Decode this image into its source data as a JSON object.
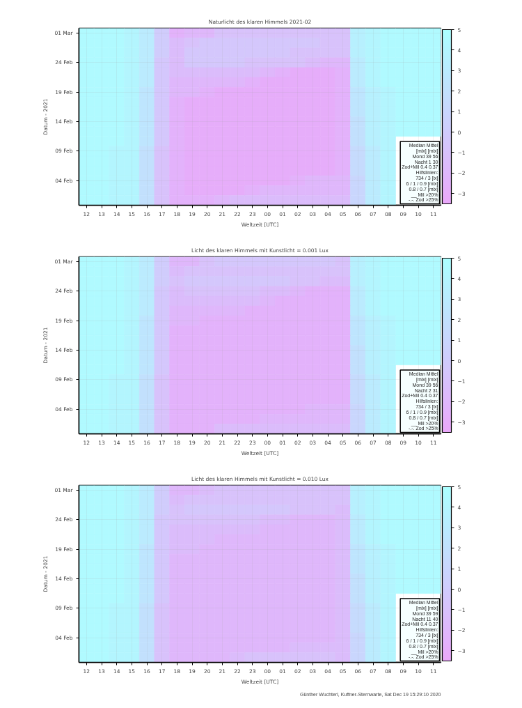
{
  "chart_data": [
    {
      "type": "heatmap",
      "title": "Naturlicht des klaren Himmels 2021-02",
      "xlabel": "Weltzeit [UTC]",
      "ylabel": "Datum - 2021",
      "categories": [
        "12",
        "13",
        "14",
        "15",
        "16",
        "17",
        "18",
        "19",
        "20",
        "21",
        "22",
        "23",
        "00",
        "01",
        "02",
        "03",
        "04",
        "05",
        "06",
        "07",
        "08",
        "09",
        "10",
        "11"
      ],
      "y_categories": [
        "01 Mar",
        null,
        null,
        "24 Feb",
        null,
        null,
        "19 Feb",
        null,
        null,
        "14 Feb",
        null,
        null,
        "09 Feb",
        null,
        null,
        "04 Feb",
        null,
        null
      ],
      "cells": [
        [
          4.5,
          4.5,
          4.5,
          4.0,
          3.0,
          0.0,
          -2.5,
          -2.0,
          -2.0,
          -1.0,
          -1.0,
          -1.0,
          -1.0,
          -1.0,
          -1.0,
          -1.0,
          -1.0,
          -1.0,
          3.5,
          4.0,
          4.5,
          4.5,
          4.5,
          4.5
        ],
        [
          4.5,
          4.5,
          4.5,
          4.0,
          3.0,
          0.0,
          -1.5,
          -1.0,
          -0.5,
          -0.5,
          -0.5,
          -0.5,
          -0.5,
          -0.5,
          -0.5,
          -0.5,
          -1.0,
          -1.0,
          3.5,
          4.0,
          4.5,
          4.5,
          4.5,
          4.5
        ],
        [
          4.5,
          4.5,
          4.5,
          4.0,
          3.0,
          0.0,
          -1.5,
          -0.5,
          -0.5,
          -0.5,
          -0.5,
          -0.5,
          -0.5,
          -0.5,
          -1.0,
          -1.0,
          -1.0,
          -1.0,
          3.5,
          4.0,
          4.5,
          4.5,
          4.5,
          4.5
        ],
        [
          4.5,
          4.5,
          4.5,
          4.0,
          3.0,
          -0.5,
          -1.5,
          -0.5,
          -0.5,
          -0.5,
          -0.5,
          -1.0,
          -1.0,
          -1.0,
          -1.0,
          -1.5,
          -2.0,
          -2.0,
          3.0,
          4.0,
          4.5,
          4.5,
          4.5,
          4.5
        ],
        [
          4.5,
          4.5,
          4.5,
          4.0,
          3.0,
          -0.5,
          -1.5,
          -1.5,
          -1.5,
          -1.5,
          -1.5,
          -1.5,
          -2.0,
          -2.5,
          -3.0,
          -3.0,
          -3.0,
          -2.5,
          3.0,
          4.0,
          4.5,
          4.5,
          4.5,
          4.5
        ],
        [
          4.5,
          4.5,
          4.5,
          4.0,
          3.0,
          -0.5,
          -2.0,
          -2.0,
          -2.0,
          -2.0,
          -2.0,
          -2.5,
          -3.0,
          -3.0,
          -3.0,
          -3.0,
          -3.0,
          -2.5,
          3.0,
          4.0,
          4.5,
          4.5,
          4.5,
          4.5
        ],
        [
          4.5,
          4.5,
          4.5,
          4.0,
          2.5,
          -0.5,
          -2.0,
          -2.0,
          -2.5,
          -3.0,
          -3.0,
          -3.0,
          -3.0,
          -3.0,
          -3.0,
          -3.0,
          -3.0,
          -2.5,
          2.5,
          3.5,
          4.0,
          4.5,
          4.5,
          4.5
        ],
        [
          4.5,
          4.5,
          4.5,
          4.0,
          2.5,
          -0.5,
          -2.5,
          -3.0,
          -3.0,
          -3.0,
          -3.0,
          -3.0,
          -3.0,
          -3.0,
          -3.0,
          -3.0,
          -3.0,
          -2.5,
          2.5,
          3.5,
          4.0,
          4.5,
          4.5,
          4.5
        ],
        [
          4.5,
          4.5,
          4.5,
          4.0,
          2.5,
          -0.5,
          -2.5,
          -3.0,
          -3.0,
          -3.0,
          -3.0,
          -3.0,
          -3.0,
          -3.0,
          -3.0,
          -3.0,
          -3.0,
          -2.5,
          2.5,
          3.5,
          4.0,
          4.5,
          4.5,
          4.5
        ],
        [
          4.5,
          4.5,
          4.5,
          4.0,
          2.5,
          -0.5,
          -2.5,
          -3.0,
          -3.0,
          -3.0,
          -3.0,
          -3.0,
          -3.0,
          -3.0,
          -3.0,
          -3.0,
          -3.0,
          -2.5,
          2.0,
          3.5,
          4.0,
          4.5,
          4.5,
          4.5
        ],
        [
          4.5,
          4.5,
          4.5,
          4.0,
          2.5,
          -0.5,
          -2.5,
          -3.0,
          -3.0,
          -3.0,
          -3.0,
          -3.0,
          -3.0,
          -3.0,
          -3.0,
          -3.0,
          -3.0,
          -2.5,
          2.0,
          3.5,
          4.0,
          4.5,
          4.5,
          4.5
        ],
        [
          4.5,
          4.5,
          4.5,
          4.0,
          2.5,
          -0.5,
          -2.5,
          -3.0,
          -3.0,
          -3.0,
          -3.0,
          -3.0,
          -3.0,
          -3.0,
          -3.0,
          -3.0,
          -3.0,
          -2.5,
          2.0,
          3.5,
          4.0,
          null,
          null,
          null
        ],
        [
          4.5,
          4.5,
          4.0,
          4.0,
          2.0,
          -1.0,
          -2.5,
          -3.0,
          -3.0,
          -3.0,
          -3.0,
          -3.0,
          -3.0,
          -3.0,
          -3.0,
          -3.0,
          -3.0,
          -2.5,
          1.5,
          3.0,
          4.0,
          null,
          null,
          null
        ],
        [
          4.5,
          4.5,
          4.0,
          4.0,
          2.0,
          -1.0,
          -2.5,
          -3.0,
          -3.0,
          -3.0,
          -3.0,
          -3.0,
          -3.0,
          -3.0,
          -3.0,
          -3.0,
          -3.0,
          -2.5,
          1.5,
          3.0,
          4.0,
          null,
          null,
          null
        ],
        [
          4.5,
          4.5,
          4.0,
          4.0,
          2.0,
          -1.0,
          -2.5,
          -3.0,
          -3.0,
          -3.0,
          -3.0,
          -3.0,
          -3.0,
          -3.0,
          -3.0,
          -3.0,
          -3.0,
          -2.5,
          1.5,
          3.0,
          4.0,
          null,
          null,
          null
        ],
        [
          4.5,
          4.5,
          4.0,
          4.0,
          2.0,
          -1.0,
          -2.5,
          -3.0,
          -3.0,
          -3.0,
          -3.0,
          -3.0,
          -3.0,
          -3.0,
          -2.5,
          -2.0,
          -2.0,
          -2.0,
          1.0,
          3.0,
          4.0,
          null,
          null,
          null
        ],
        [
          4.5,
          4.5,
          4.0,
          4.0,
          2.0,
          -1.0,
          -2.5,
          -3.0,
          -3.0,
          -3.0,
          -3.0,
          -2.5,
          -2.0,
          -2.0,
          -2.0,
          -2.0,
          -2.0,
          -2.0,
          1.0,
          3.0,
          4.0,
          null,
          null,
          null
        ],
        [
          4.5,
          4.5,
          4.0,
          4.0,
          2.0,
          -1.0,
          -2.5,
          -2.5,
          -2.5,
          -2.0,
          -1.5,
          -1.5,
          -1.5,
          -1.5,
          -1.5,
          -1.5,
          -1.5,
          -1.5,
          1.0,
          3.0,
          4.0,
          null,
          null,
          null
        ]
      ],
      "clim": [
        -3.5,
        5
      ],
      "cticks": [
        -3,
        -2,
        -1,
        0,
        1,
        2,
        3,
        4,
        5
      ],
      "grid": true,
      "annotations": [
        "Median Mittel\n[mlx] [mlx]\nMond 39 56\nNacht 1 30\nZod+Mil 0.4 0.37\nHilfslinien:\n734 / 3 [lx]\n6 / 1 / 0.9 [mlx]\n0.8 / 0.7 [mlx]\n__ Mil >20%\n-.-. Zod >25%"
      ]
    },
    {
      "type": "heatmap",
      "title": "Licht des klaren Himmels mit Kunstlicht = 0.001 Lux",
      "xlabel": "Weltzeit [UTC]",
      "ylabel": "Datum - 2021",
      "categories": [
        "12",
        "13",
        "14",
        "15",
        "16",
        "17",
        "18",
        "19",
        "20",
        "21",
        "22",
        "23",
        "00",
        "01",
        "02",
        "03",
        "04",
        "05",
        "06",
        "07",
        "08",
        "09",
        "10",
        "11"
      ],
      "y_categories": [
        "01 Mar",
        null,
        null,
        "24 Feb",
        null,
        null,
        "19 Feb",
        null,
        null,
        "14 Feb",
        null,
        null,
        "09 Feb",
        null,
        null,
        "04 Feb",
        null,
        null
      ],
      "cells": [
        [
          4.5,
          4.5,
          4.5,
          4.0,
          3.0,
          0.0,
          -2.0,
          -2.0,
          -1.0,
          -0.5,
          -0.5,
          -0.5,
          -0.5,
          -0.5,
          -0.5,
          -0.5,
          -0.5,
          -1.0,
          3.5,
          4.0,
          4.5,
          4.5,
          4.5,
          4.5
        ],
        [
          4.5,
          4.5,
          4.5,
          4.0,
          3.0,
          0.0,
          -1.5,
          -1.0,
          -1.0,
          -1.0,
          -1.0,
          -1.0,
          -1.0,
          -1.0,
          -1.0,
          -1.0,
          -1.0,
          -1.0,
          3.5,
          4.0,
          4.5,
          4.5,
          4.5,
          4.5
        ],
        [
          4.5,
          4.5,
          4.5,
          4.0,
          3.0,
          0.0,
          -1.0,
          -0.5,
          -0.5,
          -0.5,
          -0.5,
          -0.5,
          -0.5,
          -0.5,
          -1.0,
          -1.0,
          -1.5,
          -1.5,
          3.5,
          4.0,
          4.5,
          4.5,
          4.5,
          4.5
        ],
        [
          4.5,
          4.5,
          4.5,
          4.0,
          3.0,
          -0.5,
          -1.5,
          -1.0,
          -1.0,
          -1.0,
          -1.0,
          -1.0,
          -1.5,
          -1.5,
          -2.0,
          -2.5,
          -2.5,
          -2.5,
          3.0,
          4.0,
          4.5,
          4.5,
          4.5,
          4.5
        ],
        [
          4.5,
          4.5,
          4.5,
          4.0,
          3.0,
          -0.5,
          -1.5,
          -1.5,
          -1.5,
          -1.5,
          -1.5,
          -1.5,
          -2.0,
          -2.5,
          -2.5,
          -2.5,
          -2.5,
          -2.5,
          3.0,
          4.0,
          4.5,
          4.5,
          4.5,
          4.5
        ],
        [
          4.5,
          4.5,
          4.5,
          4.0,
          3.0,
          -0.5,
          -2.0,
          -2.0,
          -2.0,
          -2.0,
          -2.0,
          -2.5,
          -2.5,
          -2.5,
          -2.5,
          -2.5,
          -2.5,
          -2.5,
          3.0,
          4.0,
          4.5,
          4.5,
          4.5,
          4.5
        ],
        [
          4.5,
          4.5,
          4.5,
          4.0,
          2.5,
          -0.5,
          -2.0,
          -2.0,
          -2.5,
          -2.5,
          -2.5,
          -2.5,
          -2.5,
          -2.5,
          -2.5,
          -2.5,
          -2.5,
          -2.5,
          2.5,
          3.5,
          4.0,
          4.5,
          4.5,
          4.5
        ],
        [
          4.5,
          4.5,
          4.5,
          4.0,
          2.5,
          -0.5,
          -2.5,
          -2.5,
          -2.5,
          -2.5,
          -2.5,
          -2.5,
          -2.5,
          -2.5,
          -2.5,
          -2.5,
          -2.5,
          -2.5,
          2.5,
          3.5,
          4.0,
          4.5,
          4.5,
          4.5
        ],
        [
          4.5,
          4.5,
          4.5,
          4.0,
          2.5,
          -0.5,
          -2.5,
          -2.5,
          -2.5,
          -2.5,
          -2.5,
          -2.5,
          -2.5,
          -2.5,
          -2.5,
          -2.5,
          -2.5,
          -2.5,
          2.5,
          3.5,
          4.0,
          4.5,
          4.5,
          4.5
        ],
        [
          4.5,
          4.5,
          4.5,
          4.0,
          2.5,
          -0.5,
          -2.5,
          -2.5,
          -2.5,
          -2.5,
          -2.5,
          -2.5,
          -2.5,
          -2.5,
          -2.5,
          -2.5,
          -2.5,
          -2.5,
          2.0,
          3.5,
          4.0,
          4.5,
          4.5,
          4.5
        ],
        [
          4.5,
          4.5,
          4.5,
          4.0,
          2.5,
          -0.5,
          -2.5,
          -2.5,
          -2.5,
          -2.5,
          -2.5,
          -2.5,
          -2.5,
          -2.5,
          -2.5,
          -2.5,
          -2.5,
          -2.5,
          2.0,
          3.5,
          4.0,
          4.5,
          4.5,
          4.5
        ],
        [
          4.5,
          4.5,
          4.5,
          4.0,
          2.5,
          -0.5,
          -2.5,
          -2.5,
          -2.5,
          -2.5,
          -2.5,
          -2.5,
          -2.5,
          -2.5,
          -2.5,
          -2.5,
          -2.5,
          -2.5,
          2.0,
          3.5,
          4.0,
          null,
          null,
          null
        ],
        [
          4.5,
          4.5,
          4.0,
          4.0,
          2.0,
          -1.0,
          -2.5,
          -2.5,
          -2.5,
          -2.5,
          -2.5,
          -2.5,
          -2.5,
          -2.5,
          -2.5,
          -2.5,
          -2.5,
          -2.5,
          1.5,
          3.0,
          4.0,
          null,
          null,
          null
        ],
        [
          4.5,
          4.5,
          4.0,
          4.0,
          2.0,
          -1.0,
          -2.5,
          -2.5,
          -2.5,
          -2.5,
          -2.5,
          -2.5,
          -2.5,
          -2.5,
          -2.5,
          -2.5,
          -2.5,
          -2.5,
          1.5,
          3.0,
          4.0,
          null,
          null,
          null
        ],
        [
          4.5,
          4.5,
          4.0,
          4.0,
          2.0,
          -1.0,
          -2.5,
          -2.5,
          -2.5,
          -2.5,
          -2.5,
          -2.5,
          -2.5,
          -2.5,
          -2.5,
          -2.5,
          -2.5,
          -2.5,
          1.5,
          3.0,
          4.0,
          null,
          null,
          null
        ],
        [
          4.5,
          4.5,
          4.0,
          4.0,
          2.0,
          -1.0,
          -2.5,
          -2.5,
          -2.5,
          -2.5,
          -2.5,
          -2.5,
          -2.5,
          -2.5,
          -2.5,
          -2.0,
          -2.0,
          -2.0,
          1.0,
          3.0,
          4.0,
          null,
          null,
          null
        ],
        [
          4.5,
          4.5,
          4.0,
          4.0,
          2.0,
          -1.0,
          -2.5,
          -2.5,
          -2.5,
          -2.5,
          -2.5,
          -2.5,
          -2.0,
          -2.0,
          -2.0,
          -2.0,
          -2.0,
          -2.0,
          1.0,
          3.0,
          4.0,
          null,
          null,
          null
        ],
        [
          4.5,
          4.5,
          4.0,
          4.0,
          2.0,
          -1.0,
          -2.5,
          -2.5,
          -2.5,
          -1.5,
          -1.5,
          -1.5,
          -1.5,
          -1.5,
          -1.5,
          -1.5,
          -1.5,
          -1.5,
          1.0,
          3.0,
          4.0,
          null,
          null,
          null
        ]
      ],
      "clim": [
        -3.5,
        5
      ],
      "cticks": [
        -3,
        -2,
        -1,
        0,
        1,
        2,
        3,
        4,
        5
      ],
      "grid": true,
      "annotations": [
        "Median Mittel\n[mlx] [mlx]\nMond 39 56\nNacht 2 31\nZod+Mil 0.4 0.37\nHilfslinien:\n734 / 3 [lx]\n6 / 1 / 0.9 [mlx]\n0.8 / 0.7 [mlx]\n__ Mil >20%\n-.-. Zod >25%"
      ]
    },
    {
      "type": "heatmap",
      "title": "Licht des klaren Himmels mit Kunstlicht = 0.010 Lux",
      "xlabel": "Weltzeit [UTC]",
      "ylabel": "Datum - 2021",
      "categories": [
        "12",
        "13",
        "14",
        "15",
        "16",
        "17",
        "18",
        "19",
        "20",
        "21",
        "22",
        "23",
        "00",
        "01",
        "02",
        "03",
        "04",
        "05",
        "06",
        "07",
        "08",
        "09",
        "10",
        "11"
      ],
      "y_categories": [
        "01 Mar",
        null,
        null,
        "24 Feb",
        null,
        null,
        "19 Feb",
        null,
        null,
        "14 Feb",
        null,
        null,
        "09 Feb",
        null,
        null,
        "04 Feb",
        null,
        null
      ],
      "cells": [
        [
          4.5,
          4.5,
          4.5,
          4.0,
          3.0,
          0.0,
          -2.0,
          -2.0,
          -1.5,
          -1.0,
          -1.0,
          -1.0,
          -1.0,
          -1.0,
          -1.0,
          -1.0,
          -1.0,
          -1.0,
          3.5,
          4.0,
          4.5,
          4.5,
          4.5,
          4.5
        ],
        [
          4.5,
          4.5,
          4.5,
          4.0,
          3.0,
          0.0,
          -1.5,
          -1.0,
          -1.0,
          -1.0,
          -1.0,
          -1.0,
          -1.0,
          -1.0,
          -1.0,
          -1.0,
          -1.0,
          -1.0,
          3.5,
          4.0,
          4.5,
          4.5,
          4.5,
          4.5
        ],
        [
          4.5,
          4.5,
          4.5,
          4.0,
          3.0,
          0.0,
          -1.0,
          -0.5,
          -0.5,
          -0.5,
          -0.5,
          -0.5,
          -0.5,
          -0.5,
          -1.0,
          -1.0,
          -1.0,
          -1.5,
          3.5,
          4.0,
          4.5,
          4.5,
          4.5,
          4.5
        ],
        [
          4.5,
          4.5,
          4.5,
          4.0,
          3.0,
          -0.5,
          -1.0,
          -1.0,
          -1.0,
          -1.0,
          -1.0,
          -1.0,
          -1.5,
          -1.5,
          -2.0,
          -2.0,
          -2.0,
          -1.5,
          3.0,
          4.0,
          4.5,
          4.5,
          4.5,
          4.5
        ],
        [
          4.5,
          4.5,
          4.5,
          4.0,
          3.0,
          -0.5,
          -1.5,
          -1.5,
          -1.5,
          -1.5,
          -1.5,
          -1.5,
          -2.0,
          -2.0,
          -2.0,
          -2.0,
          -2.0,
          -1.5,
          3.0,
          4.0,
          4.5,
          4.5,
          4.5,
          4.5
        ],
        [
          4.5,
          4.5,
          4.5,
          4.0,
          3.0,
          -0.5,
          -1.5,
          -1.5,
          -1.5,
          -2.0,
          -2.0,
          -2.0,
          -2.0,
          -2.0,
          -2.0,
          -2.0,
          -2.0,
          -1.5,
          3.0,
          4.0,
          4.5,
          4.5,
          4.5,
          4.5
        ],
        [
          4.5,
          4.5,
          4.5,
          4.0,
          2.5,
          -0.5,
          -1.5,
          -1.5,
          -2.0,
          -2.0,
          -2.0,
          -2.0,
          -2.0,
          -2.0,
          -2.0,
          -2.0,
          -2.0,
          -1.5,
          2.5,
          3.5,
          4.0,
          4.5,
          4.5,
          4.5
        ],
        [
          4.5,
          4.5,
          4.5,
          4.0,
          2.5,
          -0.5,
          -2.0,
          -2.0,
          -2.0,
          -2.0,
          -2.0,
          -2.0,
          -2.0,
          -2.0,
          -2.0,
          -2.0,
          -2.0,
          -1.5,
          2.5,
          3.5,
          4.0,
          4.5,
          4.5,
          4.5
        ],
        [
          4.5,
          4.5,
          4.5,
          4.0,
          2.5,
          -0.5,
          -2.0,
          -2.0,
          -2.0,
          -2.0,
          -2.0,
          -2.0,
          -2.0,
          -2.0,
          -2.0,
          -2.0,
          -2.0,
          -1.5,
          2.5,
          3.5,
          4.0,
          4.5,
          4.5,
          4.5
        ],
        [
          4.5,
          4.5,
          4.5,
          4.0,
          2.5,
          -0.5,
          -2.0,
          -2.0,
          -2.0,
          -2.0,
          -2.0,
          -2.0,
          -2.0,
          -2.0,
          -2.0,
          -2.0,
          -2.0,
          -1.5,
          2.0,
          3.5,
          4.0,
          4.5,
          4.5,
          4.5
        ],
        [
          4.5,
          4.5,
          4.5,
          4.0,
          2.5,
          -0.5,
          -2.0,
          -2.0,
          -2.0,
          -2.0,
          -2.0,
          -2.0,
          -2.0,
          -2.0,
          -2.0,
          -2.0,
          -2.0,
          -1.5,
          2.0,
          3.5,
          4.0,
          4.5,
          4.5,
          4.5
        ],
        [
          4.5,
          4.5,
          4.5,
          4.0,
          2.5,
          -0.5,
          -2.0,
          -2.0,
          -2.0,
          -2.0,
          -2.0,
          -2.0,
          -2.0,
          -2.0,
          -2.0,
          -2.0,
          -2.0,
          -1.5,
          2.0,
          3.5,
          4.0,
          null,
          null,
          null
        ],
        [
          4.5,
          4.5,
          4.0,
          4.0,
          2.0,
          -1.0,
          -2.0,
          -2.0,
          -2.0,
          -2.0,
          -2.0,
          -2.0,
          -2.0,
          -2.0,
          -2.0,
          -2.0,
          -2.0,
          -1.5,
          1.5,
          3.0,
          4.0,
          null,
          null,
          null
        ],
        [
          4.5,
          4.5,
          4.0,
          4.0,
          2.0,
          -1.0,
          -2.0,
          -2.0,
          -2.0,
          -2.0,
          -2.0,
          -2.0,
          -2.0,
          -2.0,
          -2.0,
          -2.0,
          -2.0,
          -1.5,
          1.5,
          3.0,
          4.0,
          null,
          null,
          null
        ],
        [
          4.5,
          4.5,
          4.0,
          4.0,
          2.0,
          -1.0,
          -2.0,
          -2.0,
          -2.0,
          -2.0,
          -2.0,
          -2.0,
          -2.0,
          -2.0,
          -2.0,
          -2.0,
          -2.0,
          -1.5,
          1.5,
          3.0,
          4.0,
          null,
          null,
          null
        ],
        [
          4.5,
          4.5,
          4.0,
          4.0,
          2.0,
          -1.0,
          -2.0,
          -2.0,
          -2.0,
          -2.0,
          -2.0,
          -2.0,
          -2.0,
          -2.0,
          -2.0,
          -2.0,
          -2.0,
          -1.5,
          1.0,
          3.0,
          4.0,
          null,
          null,
          null
        ],
        [
          4.5,
          4.5,
          4.0,
          4.0,
          2.0,
          -1.0,
          -2.0,
          -2.0,
          -2.0,
          -2.0,
          -2.0,
          -2.0,
          -2.0,
          -2.0,
          -1.5,
          -1.5,
          -1.5,
          -1.5,
          1.0,
          3.0,
          4.0,
          null,
          null,
          null
        ],
        [
          4.5,
          4.5,
          4.0,
          4.0,
          2.0,
          -1.0,
          -2.0,
          -2.0,
          -2.0,
          -2.0,
          -1.5,
          -1.0,
          -1.0,
          -1.0,
          -1.0,
          -1.0,
          -1.0,
          -1.5,
          1.0,
          3.0,
          4.0,
          null,
          null,
          null
        ]
      ],
      "clim": [
        -3.5,
        5
      ],
      "cticks": [
        -3,
        -2,
        -1,
        0,
        1,
        2,
        3,
        4,
        5
      ],
      "grid": true,
      "annotations": [
        "Median Mittel\n[mlx] [mlx]\nMond 39 59\nNacht 11 40\nZod+Mil 0.4 0.37\nHilfslinien:\n734 / 3 [lx]\n6 / 1 / 0.9 [mlx]\n0.8 / 0.7 [mlx]\n__ Mil >20%\n-.-. Zod >25%",
        "Günther Wuchterl, Kuffner-Sternwarte, Sat Dec 19 15:29:10 2020"
      ]
    }
  ]
}
